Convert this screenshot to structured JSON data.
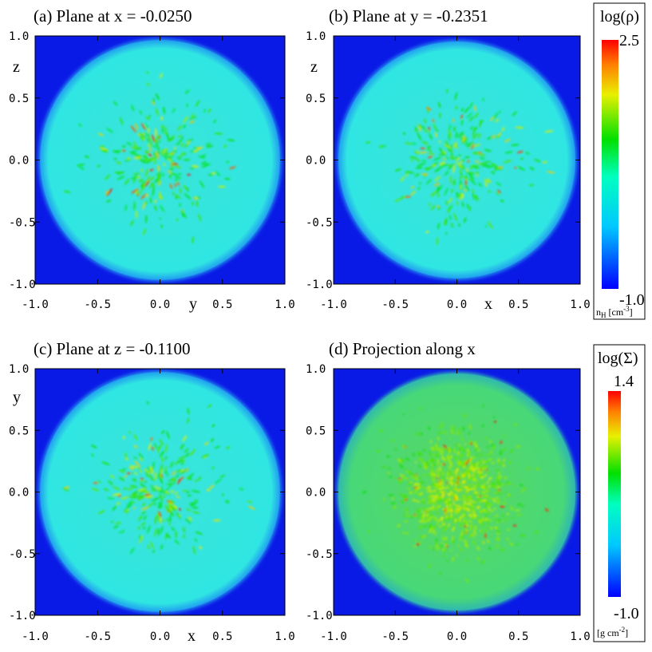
{
  "chart_data": [
    {
      "type": "heatmap",
      "title": "(a) Plane at x = -0.0250",
      "xlabel": "y",
      "ylabel": "z",
      "xlim": [
        -1.0,
        1.0
      ],
      "ylim": [
        -1.0,
        1.0
      ],
      "xticks": [
        "-1.0",
        "-0.5",
        "0.0",
        "0.5",
        "1.0"
      ],
      "yticks": [
        "1.0",
        "0.5",
        "0.0",
        "-0.5",
        "-1.0"
      ],
      "quantity": "log(ρ)",
      "cloud_radius": 0.96,
      "background_level": -1.0,
      "cloud_level": 0.05,
      "clump_level_max": 2.5
    },
    {
      "type": "heatmap",
      "title": "(b) Plane at y = -0.2351",
      "xlabel": "x",
      "ylabel": "z",
      "xlim": [
        -1.0,
        1.0
      ],
      "ylim": [
        -1.0,
        1.0
      ],
      "xticks": [
        "-1.0",
        "-0.5",
        "0.0",
        "0.5",
        "1.0"
      ],
      "yticks": [
        "1.0",
        "0.5",
        "0.0",
        "-0.5",
        "-1.0"
      ],
      "quantity": "log(ρ)",
      "cloud_radius": 0.96,
      "background_level": -1.0,
      "cloud_level": 0.05,
      "clump_level_max": 2.5
    },
    {
      "type": "heatmap",
      "title": "(c) Plane at z = -0.1100",
      "xlabel": "x",
      "ylabel": "y",
      "xlim": [
        -1.0,
        1.0
      ],
      "ylim": [
        -1.0,
        1.0
      ],
      "xticks": [
        "-1.0",
        "-0.5",
        "0.0",
        "0.5",
        "1.0"
      ],
      "yticks": [
        "1.0",
        "0.5",
        "0.0",
        "-0.5",
        "-1.0"
      ],
      "quantity": "log(ρ)",
      "cloud_radius": 0.96,
      "background_level": -1.0,
      "cloud_level": 0.05,
      "clump_level_max": 2.5
    },
    {
      "type": "heatmap",
      "title": "(d) Projection along x",
      "xlabel": "",
      "ylabel": "",
      "xlim": [
        -1.0,
        1.0
      ],
      "ylim": [
        -1.0,
        1.0
      ],
      "xticks": [
        "-1.0",
        "-0.5",
        "0.0",
        "0.5",
        "1.0"
      ],
      "yticks": [
        "1.0",
        "0.5",
        "0.0",
        "-0.5",
        "-1.0"
      ],
      "quantity": "log(Σ)",
      "cloud_radius": 0.96,
      "background_level": -1.0,
      "cloud_level": 0.3,
      "clump_level_max": 1.4
    }
  ],
  "colorbars": [
    {
      "label": "log(ρ)",
      "max_label": "2.5",
      "min_label": "-1.0",
      "unit_main": "n",
      "unit_sub": "H",
      "unit_rest": " [cm",
      "unit_sup": "-3",
      "unit_end": "]"
    },
    {
      "label": "log(Σ)",
      "max_label": "1.4",
      "min_label": "-1.0",
      "unit_main": "[g cm",
      "unit_sup": "-2",
      "unit_end": "]"
    }
  ],
  "colors": {
    "background": "#0a1ae6",
    "cloud_slice": "#2ee6e0",
    "cloud_projection": "#4ed86a",
    "clump_high": "#ff1a00",
    "clump_mid": "#e8e020"
  }
}
